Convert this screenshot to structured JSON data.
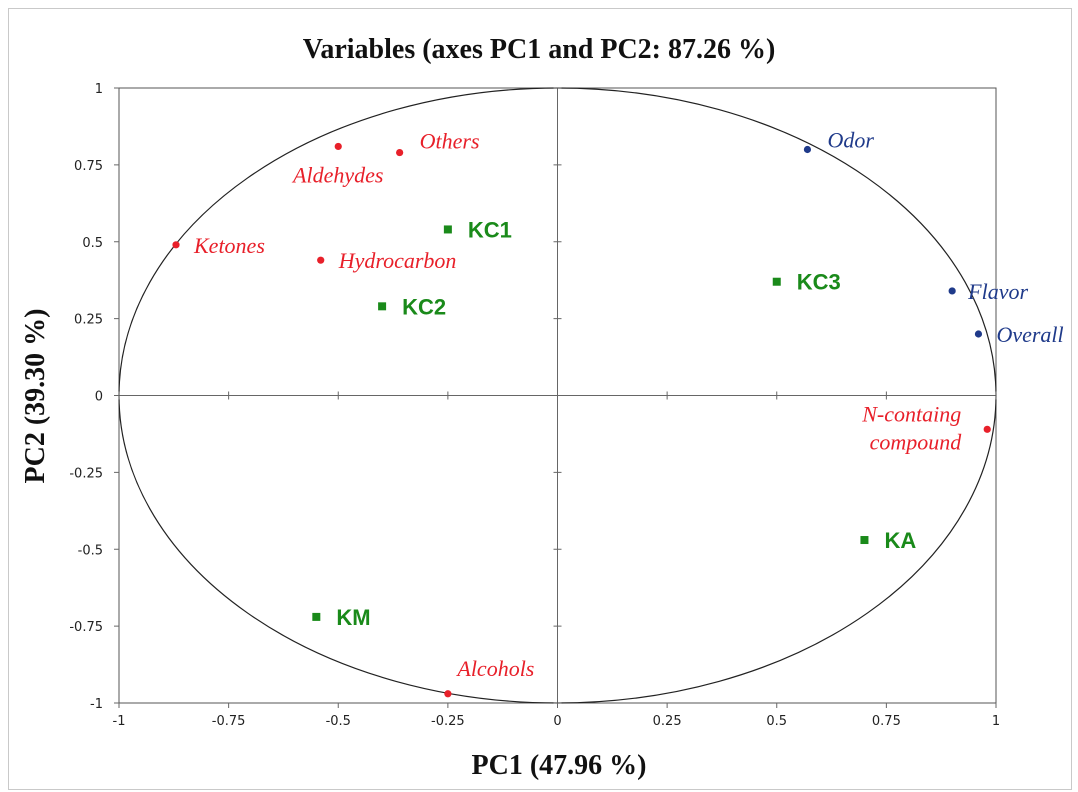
{
  "chart_data": {
    "type": "scatter",
    "title": "Variables (axes PC1 and PC2: 87.26 %)",
    "xlabel": "PC1 (47.96 %)",
    "ylabel": "PC2 (39.30 %)",
    "xlim": [
      -1,
      1
    ],
    "ylim": [
      -1,
      1
    ],
    "xticks": [
      "-1",
      "-0.75",
      "-0.5",
      "-0.25",
      "0",
      "0.25",
      "0.5",
      "0.75",
      "1"
    ],
    "yticks": [
      "1",
      "0.75",
      "0.5",
      "0.25",
      "0",
      "-0.25",
      "-0.5",
      "-0.75",
      "-1"
    ],
    "correlation_circle": true,
    "colors": {
      "volatile": "#e8202a",
      "sensory": "#1f3a8a",
      "sample": "#1a8a1a"
    },
    "groups": [
      {
        "kind": "volatile",
        "points": [
          {
            "label": "Others",
            "x": -0.36,
            "y": 0.79
          },
          {
            "label": "Aldehydes",
            "x": -0.5,
            "y": 0.81
          },
          {
            "label": "Ketones",
            "x": -0.87,
            "y": 0.49
          },
          {
            "label": "Hydrocarbon",
            "x": -0.54,
            "y": 0.44
          },
          {
            "label": "N-containg compound",
            "x": 0.98,
            "y": -0.11
          },
          {
            "label": "Alcohols",
            "x": -0.25,
            "y": -0.97
          }
        ]
      },
      {
        "kind": "sensory",
        "points": [
          {
            "label": "Odor",
            "x": 0.57,
            "y": 0.8
          },
          {
            "label": "Flavor",
            "x": 0.9,
            "y": 0.34
          },
          {
            "label": "Overall",
            "x": 0.96,
            "y": 0.2
          }
        ]
      },
      {
        "kind": "sample",
        "points": [
          {
            "label": "KC1",
            "x": -0.25,
            "y": 0.54
          },
          {
            "label": "KC2",
            "x": -0.4,
            "y": 0.29
          },
          {
            "label": "KC3",
            "x": 0.5,
            "y": 0.37
          },
          {
            "label": "KA",
            "x": 0.7,
            "y": -0.47
          },
          {
            "label": "KM",
            "x": -0.55,
            "y": -0.72
          }
        ]
      }
    ]
  }
}
